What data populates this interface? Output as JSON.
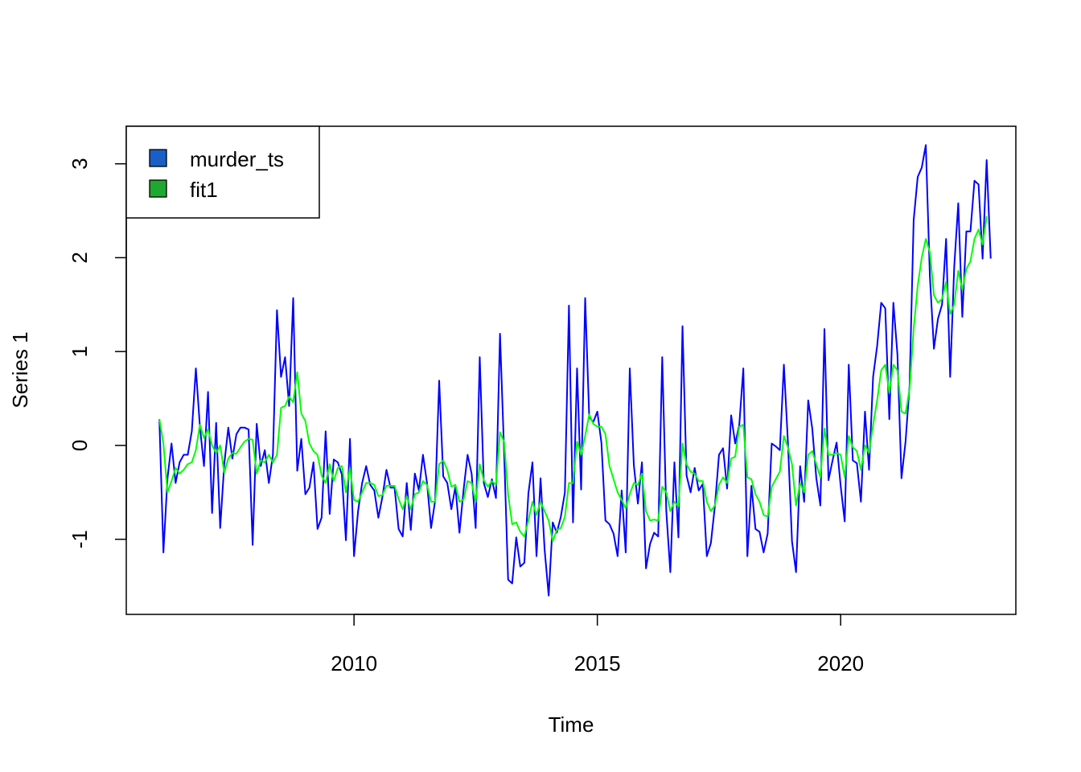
{
  "chart_data": {
    "type": "line",
    "xlabel": "Time",
    "ylabel": "Series 1",
    "x_range": [
      2006.0,
      2022.9167
    ],
    "xlim": [
      2005.32,
      2023.6
    ],
    "ylim": [
      -1.8,
      3.4
    ],
    "x_ticks": [
      2010,
      2015,
      2020
    ],
    "y_ticks": [
      -1,
      0,
      1,
      2,
      3
    ],
    "x_tick_labels": [
      "2010",
      "2015",
      "2020"
    ],
    "y_tick_labels": [
      "-1",
      "0",
      "1",
      "2",
      "3"
    ],
    "grid": false,
    "legend_position": "top-left",
    "legend_entries": [
      "murder_ts",
      "fit1"
    ],
    "series": [
      {
        "name": "murder_ts",
        "color": "#0000ff",
        "legend_swatch_color": "#1a5fc7",
        "start": 2006.0,
        "step": 0.083333,
        "values": [
          0.28,
          -1.14,
          -0.35,
          0.02,
          -0.4,
          -0.18,
          -0.1,
          -0.1,
          0.15,
          0.82,
          0.2,
          -0.22,
          0.57,
          -0.72,
          0.24,
          -0.88,
          -0.2,
          0.19,
          -0.14,
          0.12,
          0.19,
          0.19,
          0.17,
          -1.06,
          0.23,
          -0.22,
          -0.05,
          -0.4,
          -0.1,
          1.44,
          0.73,
          0.94,
          0.42,
          1.57,
          -0.27,
          0.07,
          -0.52,
          -0.45,
          -0.18,
          -0.89,
          -0.77,
          0.15,
          -0.73,
          -0.15,
          -0.18,
          -0.31,
          -1.01,
          0.07,
          -1.18,
          -0.7,
          -0.4,
          -0.22,
          -0.42,
          -0.48,
          -0.77,
          -0.55,
          -0.26,
          -0.45,
          -0.45,
          -0.89,
          -0.97,
          -0.4,
          -0.9,
          -0.3,
          -0.48,
          -0.1,
          -0.4,
          -0.88,
          -0.59,
          0.69,
          -0.33,
          -0.4,
          -0.68,
          -0.44,
          -0.93,
          -0.48,
          -0.1,
          -0.3,
          -0.88,
          0.94,
          -0.4,
          -0.55,
          -0.36,
          -0.56,
          1.19,
          -0.06,
          -1.43,
          -1.47,
          -0.98,
          -1.29,
          -1.25,
          -0.51,
          -0.18,
          -1.18,
          -0.35,
          -1.11,
          -1.6,
          -0.82,
          -0.93,
          -0.76,
          -0.5,
          1.49,
          -0.82,
          0.82,
          -0.47,
          1.57,
          0.3,
          0.25,
          0.36,
          0.03,
          -0.8,
          -0.84,
          -0.94,
          -1.18,
          -0.48,
          -1.14,
          0.82,
          -0.21,
          -0.62,
          -0.18,
          -1.31,
          -1.05,
          -0.93,
          -0.97,
          0.94,
          -0.7,
          -1.35,
          -0.18,
          -0.98,
          1.27,
          -0.32,
          -0.5,
          -0.24,
          -0.48,
          -0.41,
          -1.18,
          -1.04,
          -0.64,
          -0.1,
          -0.03,
          -0.46,
          0.32,
          0.02,
          0.22,
          0.82,
          -1.18,
          -0.43,
          -0.89,
          -0.92,
          -1.14,
          -0.94,
          0.02,
          -0.01,
          -0.05,
          0.86,
          0.03,
          -1.02,
          -1.35,
          -0.22,
          -0.6,
          0.48,
          0.18,
          -0.35,
          -0.64,
          1.24,
          -0.37,
          -0.16,
          0.03,
          -0.43,
          -0.81,
          0.86,
          -0.16,
          -0.19,
          -0.6,
          0.36,
          -0.26,
          0.73,
          1.06,
          1.52,
          1.46,
          0.28,
          1.52,
          0.97,
          -0.35,
          0.04,
          0.64,
          2.4,
          2.86,
          2.96,
          3.2,
          1.8,
          1.03,
          1.35,
          1.5,
          2.2,
          0.73,
          1.9,
          2.58,
          1.37,
          2.28,
          2.28,
          2.82,
          2.78,
          1.99,
          3.04,
          1.99
        ]
      },
      {
        "name": "fit1",
        "color": "#00ff00",
        "legend_swatch_color": "#1fa82f",
        "start": 2006.0,
        "step": 0.083333,
        "values": [
          0.28,
          0.02,
          -0.5,
          -0.38,
          -0.24,
          -0.3,
          -0.26,
          -0.2,
          -0.18,
          -0.05,
          0.22,
          0.08,
          0.17,
          0.0,
          -0.08,
          0.0,
          -0.29,
          -0.14,
          -0.08,
          -0.09,
          -0.02,
          0.04,
          0.07,
          0.06,
          -0.3,
          -0.16,
          -0.18,
          -0.1,
          -0.18,
          -0.1,
          0.4,
          0.42,
          0.52,
          0.46,
          0.78,
          0.34,
          0.26,
          0.02,
          -0.06,
          -0.1,
          -0.32,
          -0.4,
          -0.2,
          -0.38,
          -0.24,
          -0.22,
          -0.5,
          -0.24,
          -0.58,
          -0.6,
          -0.5,
          -0.4,
          -0.4,
          -0.42,
          -0.54,
          -0.53,
          -0.43,
          -0.43,
          -0.43,
          -0.57,
          -0.68,
          -0.54,
          -0.68,
          -0.52,
          -0.5,
          -0.38,
          -0.42,
          -0.6,
          -0.6,
          -0.2,
          -0.16,
          -0.26,
          -0.44,
          -0.42,
          -0.6,
          -0.58,
          -0.38,
          -0.4,
          -0.6,
          -0.2,
          -0.37,
          -0.44,
          -0.38,
          -0.42,
          0.14,
          0.04,
          -0.52,
          -0.84,
          -0.82,
          -0.92,
          -0.97,
          -0.8,
          -0.6,
          -0.74,
          -0.6,
          -0.7,
          -0.8,
          -1.02,
          -0.9,
          -0.88,
          -0.76,
          -0.4,
          -0.4,
          0.04,
          -0.1,
          0.1,
          0.33,
          0.23,
          0.2,
          0.2,
          0.12,
          -0.22,
          -0.36,
          -0.5,
          -0.58,
          -0.67,
          -0.52,
          -0.4,
          -0.42,
          -0.3,
          -0.7,
          -0.8,
          -0.79,
          -0.8,
          -0.44,
          -0.5,
          -0.7,
          -0.6,
          -0.65,
          0.02,
          -0.2,
          -0.28,
          -0.3,
          -0.38,
          -0.38,
          -0.6,
          -0.7,
          -0.64,
          -0.42,
          -0.34,
          -0.4,
          -0.14,
          -0.12,
          0.2,
          0.22,
          -0.34,
          -0.36,
          -0.52,
          -0.6,
          -0.74,
          -0.76,
          -0.44,
          -0.36,
          -0.28,
          0.1,
          -0.02,
          -0.2,
          -0.64,
          -0.4,
          -0.5,
          -0.1,
          -0.06,
          -0.2,
          -0.34,
          0.18,
          -0.1,
          -0.1,
          -0.08,
          -0.1,
          -0.34,
          0.1,
          -0.02,
          -0.06,
          -0.26,
          0.0,
          -0.08,
          0.22,
          0.48,
          0.8,
          0.86,
          0.56,
          0.86,
          0.8,
          0.36,
          0.34,
          0.6,
          1.24,
          1.7,
          2.0,
          2.2,
          2.06,
          1.6,
          1.52,
          1.56,
          1.74,
          1.4,
          1.5,
          1.86,
          1.66,
          1.88,
          1.96,
          2.2,
          2.3,
          2.14,
          2.44
        ]
      }
    ]
  }
}
